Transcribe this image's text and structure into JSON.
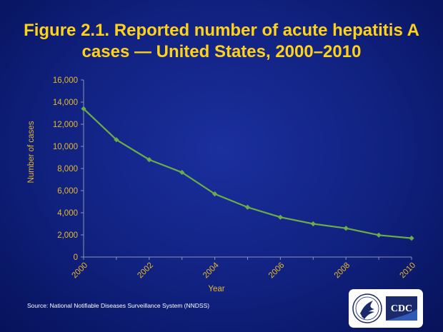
{
  "title_line1": "Figure 2.1. Reported number of acute hepatitis A",
  "title_line2": "cases — United States, 2000–2010",
  "source": "Source: National Notifiable Diseases Surveillance System (NNDSS)",
  "logo_text": "CDC",
  "colors": {
    "title": "#ffd21a",
    "axis_text": "#e6b92a",
    "line": "#6aad46",
    "background": "#10217f"
  },
  "chart_data": {
    "type": "line",
    "xlabel": "Year",
    "ylabel": "Number of cases",
    "ylim": [
      0,
      16000
    ],
    "yticks": [
      "16,000",
      "14,000",
      "12,000",
      "10,000",
      "8,000",
      "6,000",
      "4,000",
      "2,000",
      "0"
    ],
    "ytick_values": [
      16000,
      14000,
      12000,
      10000,
      8000,
      6000,
      4000,
      2000,
      0
    ],
    "xticks": [
      "2000",
      "2002",
      "2004",
      "2006",
      "2008",
      "2010"
    ],
    "x": [
      2000,
      2001,
      2002,
      2003,
      2004,
      2005,
      2006,
      2007,
      2008,
      2009,
      2010
    ],
    "values": [
      13400,
      10600,
      8800,
      7650,
      5700,
      4500,
      3600,
      3000,
      2600,
      1980,
      1700
    ],
    "grid": false
  }
}
